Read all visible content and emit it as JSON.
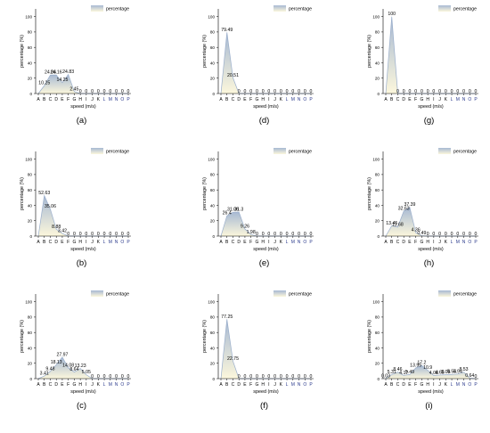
{
  "colors": {
    "area_top": "#a7b9d3",
    "area_bottom": "#fcf7dc",
    "line": "#9aaecb",
    "legend_swatch": "#a7b9d3",
    "tick_text_blue": "#2b3a8c"
  },
  "chart_data": [
    {
      "panel": "(a)",
      "type": "area",
      "categories": [
        "A",
        "B",
        "C",
        "D",
        "E",
        "F",
        "G",
        "H",
        "I",
        "J",
        "K",
        "L",
        "M",
        "N",
        "O",
        "P"
      ],
      "series": [
        {
          "name": "percentage",
          "values": [
            0,
            10.25,
            24.06,
            24.16,
            14.25,
            24.83,
            2.45,
            0,
            0,
            0,
            0,
            0,
            0,
            0,
            0,
            0
          ]
        }
      ],
      "labels": [
        "",
        "10.25",
        "24.06",
        "24.16",
        "14.25",
        "24.83",
        "2.45",
        "0",
        "0",
        "0",
        "0",
        "0",
        "0",
        "0",
        "0",
        "0"
      ],
      "xlabel": "speed (m/s)",
      "ylabel": "percentage (%)",
      "ylim": [
        0,
        110
      ],
      "yticks": [
        "0",
        "20",
        "40",
        "60",
        "80",
        "100"
      ],
      "legend": "top-right"
    },
    {
      "panel": "(d)",
      "type": "area",
      "categories": [
        "A",
        "B",
        "C",
        "D",
        "E",
        "F",
        "G",
        "H",
        "I",
        "J",
        "K",
        "L",
        "M",
        "N",
        "O",
        "P"
      ],
      "series": [
        {
          "name": "percentage",
          "values": [
            0,
            79.49,
            20.51,
            0,
            0,
            0,
            0,
            0,
            0,
            0,
            0,
            0,
            0,
            0,
            0,
            0
          ]
        }
      ],
      "labels": [
        "",
        "79.49",
        "20.51",
        "0",
        "0",
        "0",
        "0",
        "0",
        "0",
        "0",
        "0",
        "0",
        "0",
        "0",
        "0",
        "0"
      ],
      "xlabel": "speed (m/s)",
      "ylabel": "percentage (%)",
      "ylim": [
        0,
        110
      ],
      "yticks": [
        "0",
        "20",
        "40",
        "60",
        "80",
        "100"
      ],
      "legend": "top-right"
    },
    {
      "panel": "(g)",
      "type": "area",
      "categories": [
        "A",
        "B",
        "C",
        "D",
        "E",
        "F",
        "G",
        "H",
        "I",
        "J",
        "K",
        "L",
        "M",
        "N",
        "O",
        "P"
      ],
      "series": [
        {
          "name": "percentage",
          "values": [
            0,
            100,
            0,
            0,
            0,
            0,
            0,
            0,
            0,
            0,
            0,
            0,
            0,
            0,
            0,
            0
          ]
        }
      ],
      "labels": [
        "",
        "100",
        "0",
        "0",
        "0",
        "0",
        "0",
        "0",
        "0",
        "0",
        "0",
        "0",
        "0",
        "0",
        "0",
        "0"
      ],
      "xlabel": "speed (m/s)",
      "ylabel": "percentage (%)",
      "ylim": [
        0,
        110
      ],
      "yticks": [
        "0",
        "20",
        "40",
        "60",
        "80",
        "100"
      ],
      "legend": "top-right"
    },
    {
      "panel": "(b)",
      "type": "area",
      "categories": [
        "A",
        "B",
        "C",
        "D",
        "E",
        "F",
        "G",
        "H",
        "I",
        "J",
        "K",
        "L",
        "M",
        "N",
        "O",
        "P"
      ],
      "series": [
        {
          "name": "percentage",
          "values": [
            0,
            52.63,
            35.06,
            8.88,
            3.42,
            0,
            0,
            0,
            0,
            0,
            0,
            0,
            0,
            0,
            0,
            0
          ]
        }
      ],
      "labels": [
        "",
        "52.63",
        "35.06",
        "8.88",
        "3.42",
        "0",
        "0",
        "0",
        "0",
        "0",
        "0",
        "0",
        "0",
        "0",
        "0",
        "0"
      ],
      "xlabel": "speed (m/s)",
      "ylabel": "percentage (%)",
      "ylim": [
        0,
        110
      ],
      "yticks": [
        "0",
        "20",
        "40",
        "60",
        "80",
        "100"
      ],
      "legend": "top-right"
    },
    {
      "panel": "(e)",
      "type": "area",
      "categories": [
        "A",
        "B",
        "C",
        "D",
        "E",
        "F",
        "G",
        "H",
        "I",
        "J",
        "K",
        "L",
        "M",
        "N",
        "O",
        "P"
      ],
      "series": [
        {
          "name": "percentage",
          "values": [
            0,
            26.4,
            31.06,
            31.3,
            9.26,
            1.98,
            0,
            0,
            0,
            0,
            0,
            0,
            0,
            0,
            0,
            0
          ]
        }
      ],
      "labels": [
        "",
        "26.4",
        "31.06",
        "31.3",
        "9.26",
        "1.98",
        "0",
        "0",
        "0",
        "0",
        "0",
        "0",
        "0",
        "0",
        "0",
        "0"
      ],
      "xlabel": "speed (m/s)",
      "ylabel": "percentage (%)",
      "ylim": [
        0,
        110
      ],
      "yticks": [
        "0",
        "20",
        "40",
        "60",
        "80",
        "100"
      ],
      "legend": "top-right"
    },
    {
      "panel": "(h)",
      "type": "area",
      "categories": [
        "A",
        "B",
        "C",
        "D",
        "E",
        "F",
        "G",
        "H",
        "I",
        "J",
        "K",
        "L",
        "M",
        "N",
        "O",
        "P"
      ],
      "series": [
        {
          "name": "percentage",
          "values": [
            0,
            13.45,
            11.68,
            32.63,
            37.39,
            4.36,
            0.49,
            0,
            0,
            0,
            0,
            0,
            0,
            0,
            0,
            0
          ]
        }
      ],
      "labels": [
        "",
        "13.45",
        "11.68",
        "32.63",
        "37.39",
        "4.36",
        "0.49",
        "0",
        "0",
        "0",
        "0",
        "0",
        "0",
        "0",
        "0",
        "0"
      ],
      "xlabel": "speed (m/s)",
      "ylabel": "percentage (%)",
      "ylim": [
        0,
        110
      ],
      "yticks": [
        "0",
        "20",
        "40",
        "60",
        "80",
        "100"
      ],
      "legend": "top-right"
    },
    {
      "panel": "(c)",
      "type": "area",
      "categories": [
        "A",
        "B",
        "C",
        "D",
        "E",
        "F",
        "G",
        "H",
        "I",
        "J",
        "K",
        "L",
        "M",
        "N",
        "O",
        "P"
      ],
      "series": [
        {
          "name": "percentage",
          "values": [
            0,
            3.41,
            9.48,
            18.13,
            27.97,
            14.08,
            8.64,
            13.23,
            5.05,
            0,
            0,
            0,
            0,
            0,
            0,
            0
          ]
        }
      ],
      "labels": [
        "",
        "3.41",
        "9.48",
        "18.13",
        "27.97",
        "14.08",
        "8.64",
        "13.23",
        "5.05",
        "0",
        "0",
        "0",
        "0",
        "0",
        "0",
        "0"
      ],
      "xlabel": "speed (m/s)",
      "ylabel": "percentage (%)",
      "ylim": [
        0,
        110
      ],
      "yticks": [
        "0",
        "20",
        "40",
        "60",
        "80",
        "100"
      ],
      "legend": "top-right"
    },
    {
      "panel": "(f)",
      "type": "area",
      "categories": [
        "A",
        "B",
        "C",
        "D",
        "E",
        "F",
        "G",
        "H",
        "I",
        "J",
        "K",
        "L",
        "M",
        "N",
        "O",
        "P"
      ],
      "series": [
        {
          "name": "percentage",
          "values": [
            0,
            77.25,
            22.75,
            0,
            0,
            0,
            0,
            0,
            0,
            0,
            0,
            0,
            0,
            0,
            0,
            0
          ]
        }
      ],
      "labels": [
        "",
        "77.25",
        "22.75",
        "0",
        "0",
        "0",
        "0",
        "0",
        "0",
        "0",
        "0",
        "0",
        "0",
        "0",
        "0",
        "0"
      ],
      "xlabel": "speed (m/s)",
      "ylabel": "percentage (%)",
      "ylim": [
        0,
        110
      ],
      "yticks": [
        "0",
        "20",
        "40",
        "60",
        "80",
        "100"
      ],
      "legend": "top-right"
    },
    {
      "panel": "(i)",
      "type": "area",
      "categories": [
        "A",
        "B",
        "C",
        "D",
        "E",
        "F",
        "G",
        "H",
        "I",
        "J",
        "K",
        "L",
        "M",
        "N",
        "O",
        "P"
      ],
      "series": [
        {
          "name": "percentage",
          "values": [
            0.03,
            5.31,
            8.46,
            4.17,
            5.49,
            13.95,
            17.2,
            10.9,
            4.08,
            4.68,
            5.08,
            5.54,
            5.94,
            8.53,
            0.64,
            0
          ]
        }
      ],
      "labels": [
        "0.03",
        "5.31",
        "8.46",
        "4.17",
        "5.49",
        "13.95",
        "17.2",
        "10.9",
        "4.08",
        "4.68",
        "5.08",
        "5.54",
        "5.94",
        "8.53",
        "0.64",
        "0"
      ],
      "xlabel": "speed (m/s)",
      "ylabel": "percentage (%)",
      "ylim": [
        0,
        110
      ],
      "yticks": [
        "0",
        "20",
        "40",
        "60",
        "80",
        "100"
      ],
      "legend": "top-right"
    }
  ]
}
